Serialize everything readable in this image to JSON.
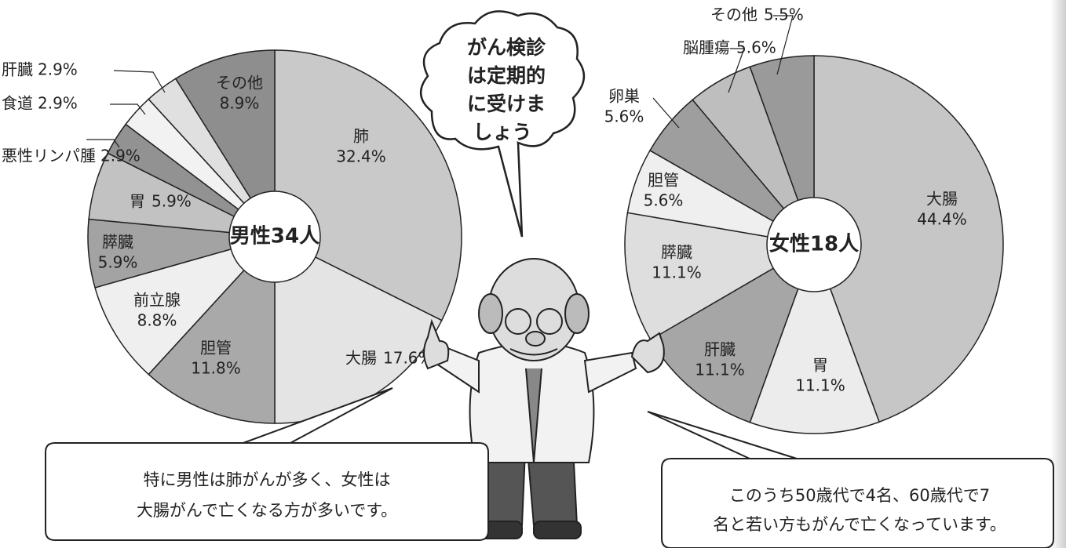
{
  "chart_data": [
    {
      "type": "pie",
      "title": "男性34人",
      "categories": [
        "肺",
        "大腸",
        "胆管",
        "前立腺",
        "膵臓",
        "胃",
        "悪性リンパ腫",
        "食道",
        "肝臓",
        "その他"
      ],
      "values": [
        32.4,
        17.6,
        11.8,
        8.8,
        5.9,
        5.9,
        2.9,
        2.9,
        2.9,
        8.9
      ],
      "value_labels": [
        "32.4%",
        "17.6%",
        "11.8%",
        "8.8%",
        "5.9%",
        "5.9%",
        "2.9%",
        "2.9%",
        "2.9%",
        "8.9%"
      ],
      "colors": [
        "#c9c9c9",
        "#e4e4e4",
        "#a9a9a9",
        "#efefef",
        "#a3a3a3",
        "#c2c2c2",
        "#929292",
        "#f2f2f2",
        "#e0e0e0",
        "#8e8e8e"
      ]
    },
    {
      "type": "pie",
      "title": "女性18人",
      "categories": [
        "大腸",
        "胃",
        "肝臓",
        "膵臓",
        "胆管",
        "卵巣",
        "脳腫瘍",
        "その他"
      ],
      "values": [
        44.4,
        11.1,
        11.1,
        11.1,
        5.6,
        5.6,
        5.6,
        5.5
      ],
      "value_labels": [
        "44.4%",
        "11.1%",
        "11.1%",
        "11.1%",
        "5.6%",
        "5.6%",
        "5.6%",
        "5.5%"
      ],
      "colors": [
        "#c6c6c6",
        "#ececec",
        "#a6a6a6",
        "#dedede",
        "#efefef",
        "#9e9e9e",
        "#bebebe",
        "#9a9a9a"
      ]
    }
  ],
  "speech": {
    "cloud": [
      "がん検診",
      "は定期的",
      "に受けま",
      "しょう"
    ],
    "left": [
      "特に男性は肺がんが多く、女性は",
      "大腸がんで亡くなる方が多いです。"
    ],
    "right": [
      "このうち50歳代で4名、60歳代で7",
      "名と若い方もがんで亡くなっています。"
    ]
  }
}
